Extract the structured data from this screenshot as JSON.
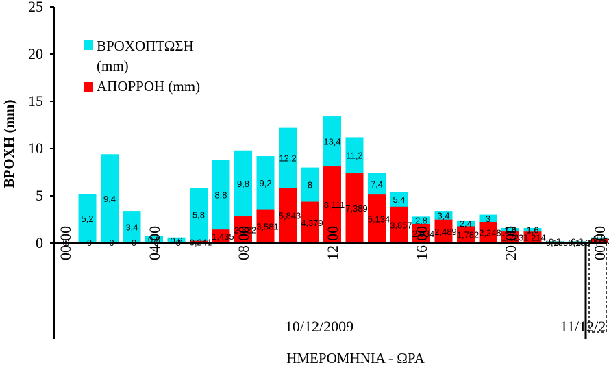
{
  "chart_data": {
    "type": "bar",
    "stacked": false,
    "xlabel": "ΗΜΕΡΟΜΗΝΙΑ - ΩΡΑ",
    "ylabel": "ΒΡΟΧΗ (mm)",
    "ylim": [
      0,
      25
    ],
    "yticks": [
      "0",
      "5",
      "10",
      "15",
      "20",
      "25"
    ],
    "x": [
      "00:00",
      "01:00",
      "02:00",
      "03:00",
      "04:00",
      "05:00",
      "06:00",
      "07:00",
      "08:00",
      "09:00",
      "10:00",
      "11:00",
      "12:00",
      "13:00",
      "14:00",
      "15:00",
      "16:00",
      "17:00",
      "18:00",
      "19:00",
      "20:00",
      "21:00",
      "22:00",
      "23:00",
      "00:00"
    ],
    "xticks": [
      "00:00",
      "04:00",
      "08:00",
      "12:00",
      "16:00",
      "20:00",
      "00:00"
    ],
    "dates": [
      "10/12/2009",
      "11/12/2"
    ],
    "series": [
      {
        "name": "ΒΡΟΧΟΠΤΩΣΗ (mm)",
        "color": "#00e5ee",
        "values": [
          0,
          5.2,
          9.4,
          3.4,
          0.8,
          0.6,
          5.8,
          8.8,
          9.8,
          9.2,
          12.2,
          8,
          13.4,
          11.2,
          7.4,
          5.4,
          2.8,
          3.4,
          2.4,
          3,
          1.6,
          1.6,
          0.2,
          0.2,
          0.6
        ],
        "labels": [
          "0",
          "5,2",
          "9,4",
          "3,4",
          "0,8",
          "0,6",
          "5,8",
          "8,8",
          "9,8",
          "9,2",
          "12,2",
          "8",
          "13,4",
          "11,2",
          "7,4",
          "5,4",
          "2,8",
          "3,4",
          "2,4",
          "3",
          "1,6",
          "1,6",
          "0,2",
          "0,2",
          "0,6"
        ]
      },
      {
        "name": "ΑΠΟΡΡΟΗ (mm)",
        "color": "#ff0000",
        "values": [
          0,
          0,
          0,
          0,
          0,
          0,
          0.241,
          1.435,
          2.822,
          3.581,
          5.843,
          4.379,
          8.111,
          7.389,
          5.134,
          3.857,
          2.034,
          2.489,
          1.782,
          2.248,
          1.223,
          1.214,
          0.155,
          0.153,
          0.453
        ],
        "labels": [
          "0",
          "0",
          "0",
          "0",
          "0",
          "0",
          "0,241",
          "1,435",
          "2,822",
          "3,581",
          "5,843",
          "4,379",
          "8,111",
          "7,389",
          "5,134",
          "3,857",
          "2,034",
          "2,489",
          "1,782",
          "2,248",
          "1,223",
          "1,214",
          "0,155",
          "0,153",
          "0,453"
        ]
      }
    ],
    "legend": {
      "position": "top-left",
      "entries": [
        "ΒΡΟΧΟΠΤΩΣΗ",
        "(mm)",
        "ΑΠΟΡΡΟΗ (mm)"
      ]
    },
    "grid": false
  }
}
